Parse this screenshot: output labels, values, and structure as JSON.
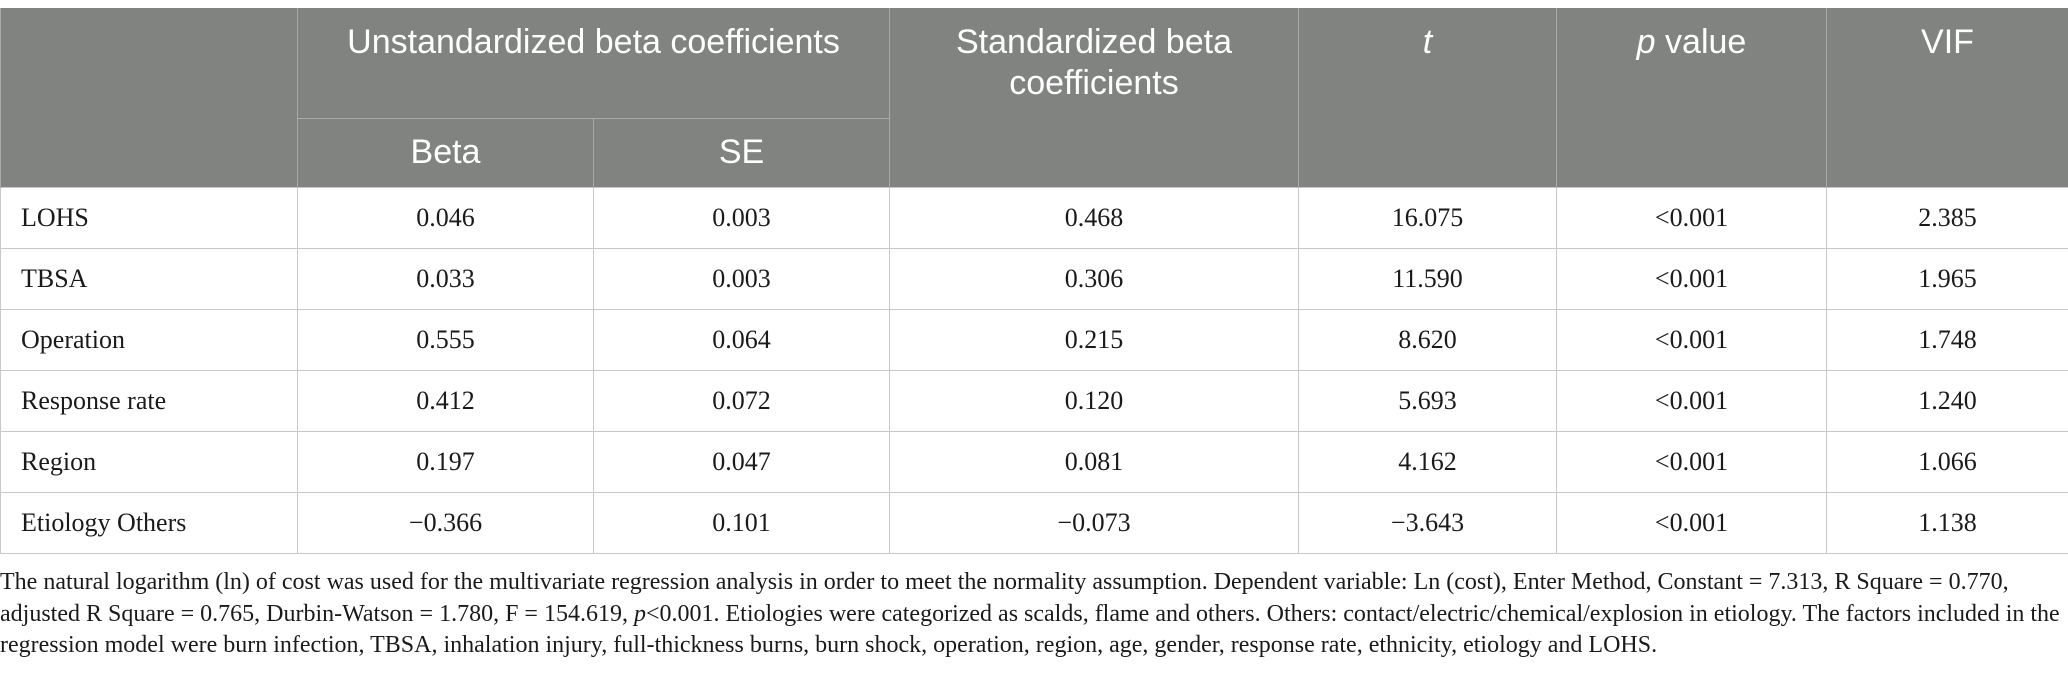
{
  "header": {
    "corner": "",
    "unstandardized": "Unstandardized beta coefficients",
    "beta": "Beta",
    "se": "SE",
    "standardized": "Standardized beta coefficients",
    "t": "t",
    "p_italic": "p",
    "p_rest": " value",
    "vif": "VIF"
  },
  "rows": [
    {
      "label": "LOHS",
      "beta": "0.046",
      "se": "0.003",
      "std": "0.468",
      "t": "16.075",
      "p": "<0.001",
      "vif": "2.385"
    },
    {
      "label": "TBSA",
      "beta": "0.033",
      "se": "0.003",
      "std": "0.306",
      "t": "11.590",
      "p": "<0.001",
      "vif": "1.965"
    },
    {
      "label": "Operation",
      "beta": "0.555",
      "se": "0.064",
      "std": "0.215",
      "t": "8.620",
      "p": "<0.001",
      "vif": "1.748"
    },
    {
      "label": "Response rate",
      "beta": "0.412",
      "se": "0.072",
      "std": "0.120",
      "t": "5.693",
      "p": "<0.001",
      "vif": "1.240"
    },
    {
      "label": "Region",
      "beta": "0.197",
      "se": "0.047",
      "std": "0.081",
      "t": "4.162",
      "p": "<0.001",
      "vif": "1.066"
    },
    {
      "label": "Etiology Others",
      "beta": "−0.366",
      "se": "0.101",
      "std": "−0.073",
      "t": "−3.643",
      "p": "<0.001",
      "vif": "1.138"
    }
  ],
  "footnote": {
    "part1": "The natural logarithm (ln) of cost was used for the multivariate regression analysis in order to meet the normality assumption. Dependent variable: Ln (cost), Enter Method, Constant = 7.313, R Square = 0.770, adjusted R Square = 0.765, Durbin-Watson = 1.780, F = 154.619, ",
    "p_italic": "p",
    "part2": "<0.001. Etiologies were categorized as scalds, flame and others. Others: contact/electric/chemical/explosion in etiology. The factors included in the regression model were burn infection, TBSA, inhalation injury, full-thickness burns, burn shock, operation, region, age, gender, response rate, ethnicity, etiology and LOHS."
  }
}
